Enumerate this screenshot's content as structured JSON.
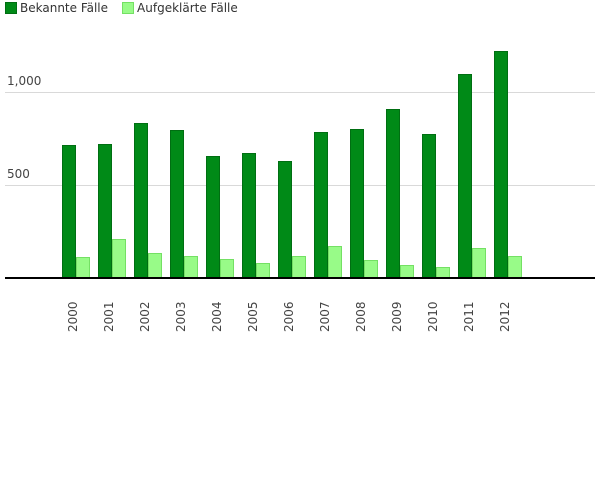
{
  "legend": [
    {
      "label": "Bekannte Fälle",
      "color": "#008a17"
    },
    {
      "label": "Aufgeklärte Fälle",
      "color": "#98fb88"
    }
  ],
  "y_axis": {
    "ticks": [
      {
        "value": 500,
        "label": "500"
      },
      {
        "value": 1000,
        "label": "1,000"
      }
    ]
  },
  "chart_data": {
    "type": "bar",
    "title": "",
    "xlabel": "",
    "ylabel": "",
    "categories": [
      "2000",
      "2001",
      "2002",
      "2003",
      "2004",
      "2005",
      "2006",
      "2007",
      "2008",
      "2009",
      "2010",
      "2011",
      "2012"
    ],
    "series": [
      {
        "name": "Bekannte Fälle",
        "color": "#008a17",
        "values": [
          715,
          720,
          833,
          796,
          656,
          674,
          631,
          785,
          801,
          909,
          774,
          1097,
          1220
        ]
      },
      {
        "name": "Aufgeklärte Fälle",
        "color": "#98fb88",
        "values": [
          113,
          210,
          134,
          118,
          102,
          79,
          118,
          172,
          97,
          70,
          59,
          161,
          118
        ]
      }
    ],
    "ylim": [
      0,
      1250
    ],
    "yticks": [
      500,
      1000
    ],
    "grid": true,
    "legend_position": "top-left"
  }
}
